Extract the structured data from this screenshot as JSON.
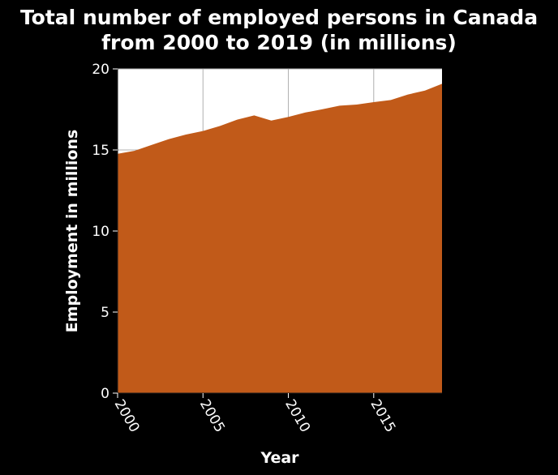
{
  "chart_data": {
    "type": "area",
    "title_lines": [
      "Total number of employed persons in Canada",
      "from 2000 to 2019 (in millions)"
    ],
    "xlabel": "Year",
    "ylabel": "Employment in millions",
    "x": [
      2000,
      2001,
      2002,
      2003,
      2004,
      2005,
      2006,
      2007,
      2008,
      2009,
      2010,
      2011,
      2012,
      2013,
      2014,
      2015,
      2016,
      2017,
      2018,
      2019
    ],
    "values": [
      14.76,
      14.95,
      15.31,
      15.67,
      15.95,
      16.17,
      16.48,
      16.87,
      17.13,
      16.81,
      17.04,
      17.31,
      17.51,
      17.73,
      17.8,
      17.95,
      18.08,
      18.42,
      18.66,
      19.08
    ],
    "xlim": [
      2000,
      2019
    ],
    "ylim": [
      0,
      20
    ],
    "xticks": [
      2000,
      2005,
      2010,
      2015
    ],
    "yticks": [
      0,
      5,
      10,
      15,
      20
    ],
    "grid": true,
    "colors": {
      "background": "#000000",
      "plot_background": "#ffffff",
      "area_fill": "#c15a19",
      "grid": "#b0b0b0",
      "text": "#ffffff"
    }
  }
}
